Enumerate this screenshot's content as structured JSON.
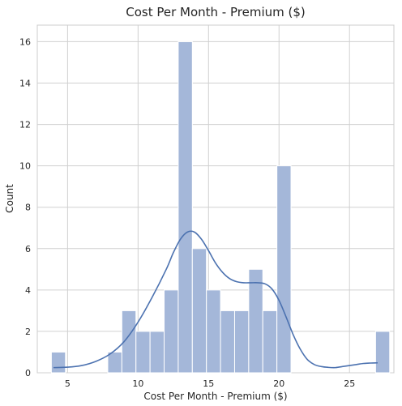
{
  "chart_data": {
    "type": "bar",
    "title": "Cost Per Month - Premium ($)",
    "xlabel": "Cost Per Month - Premium ($)",
    "ylabel": "Count",
    "xlim": [
      2.85,
      28.15
    ],
    "ylim": [
      0,
      16.8
    ],
    "xticks": [
      5,
      10,
      15,
      20,
      25
    ],
    "yticks": [
      0,
      2,
      4,
      6,
      8,
      10,
      12,
      14,
      16
    ],
    "grid": true,
    "bar_color": "#a4b7d9",
    "bar_edge_color": "#ffffff",
    "line_color": "#4c72b0",
    "bins": [
      {
        "start": 3.85,
        "end": 4.85,
        "count": 1
      },
      {
        "start": 4.85,
        "end": 5.85,
        "count": 0
      },
      {
        "start": 5.85,
        "end": 6.85,
        "count": 0
      },
      {
        "start": 6.85,
        "end": 7.85,
        "count": 0
      },
      {
        "start": 7.85,
        "end": 8.85,
        "count": 1
      },
      {
        "start": 8.85,
        "end": 9.85,
        "count": 3
      },
      {
        "start": 9.85,
        "end": 10.85,
        "count": 2
      },
      {
        "start": 10.85,
        "end": 11.85,
        "count": 2
      },
      {
        "start": 11.85,
        "end": 12.85,
        "count": 4
      },
      {
        "start": 12.85,
        "end": 13.85,
        "count": 16
      },
      {
        "start": 13.85,
        "end": 14.85,
        "count": 6
      },
      {
        "start": 14.85,
        "end": 15.85,
        "count": 4
      },
      {
        "start": 15.85,
        "end": 16.85,
        "count": 3
      },
      {
        "start": 16.85,
        "end": 17.85,
        "count": 3
      },
      {
        "start": 17.85,
        "end": 18.85,
        "count": 5
      },
      {
        "start": 18.85,
        "end": 19.85,
        "count": 3
      },
      {
        "start": 19.85,
        "end": 20.85,
        "count": 10
      },
      {
        "start": 20.85,
        "end": 21.85,
        "count": 0
      },
      {
        "start": 21.85,
        "end": 22.85,
        "count": 0
      },
      {
        "start": 22.85,
        "end": 23.85,
        "count": 0
      },
      {
        "start": 23.85,
        "end": 24.85,
        "count": 0
      },
      {
        "start": 24.85,
        "end": 25.85,
        "count": 0
      },
      {
        "start": 25.85,
        "end": 26.85,
        "count": 0
      },
      {
        "start": 26.85,
        "end": 27.85,
        "count": 2
      }
    ],
    "kde_curve": {
      "x": [
        4,
        5,
        6,
        7,
        8,
        9,
        10,
        11,
        12,
        12.5,
        13,
        13.5,
        14,
        14.5,
        15,
        15.5,
        16,
        16.5,
        17,
        17.5,
        18,
        18.5,
        19,
        19.5,
        20,
        20.5,
        21,
        21.5,
        22,
        22.5,
        23,
        23.5,
        24,
        24.5,
        25,
        25.5,
        26,
        26.5,
        27
      ],
      "y": [
        0.25,
        0.27,
        0.35,
        0.55,
        0.9,
        1.5,
        2.45,
        3.65,
        5.0,
        5.8,
        6.45,
        6.8,
        6.8,
        6.45,
        5.9,
        5.3,
        4.85,
        4.55,
        4.4,
        4.35,
        4.35,
        4.35,
        4.3,
        4.05,
        3.5,
        2.7,
        1.85,
        1.15,
        0.65,
        0.4,
        0.3,
        0.26,
        0.25,
        0.3,
        0.35,
        0.4,
        0.45,
        0.47,
        0.48
      ]
    }
  }
}
